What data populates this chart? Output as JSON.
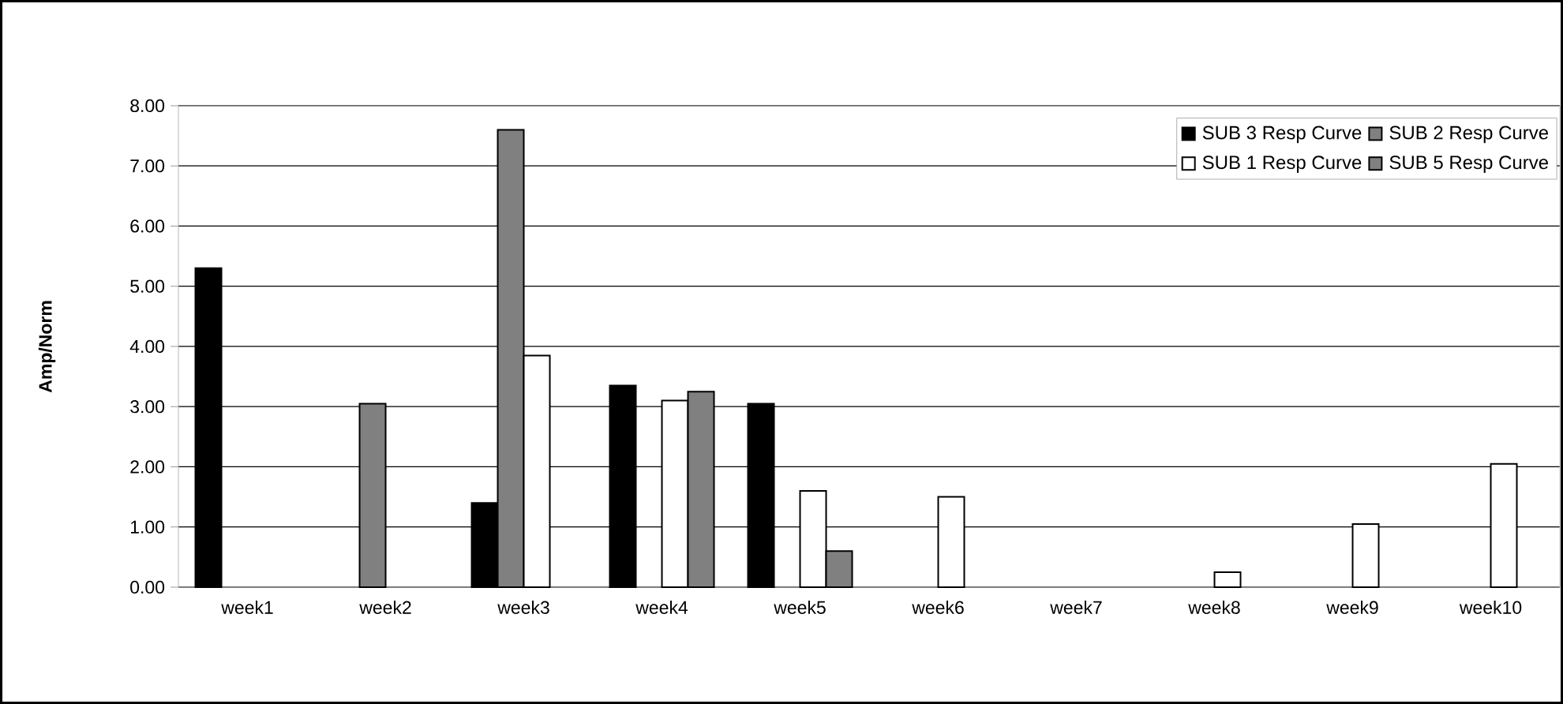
{
  "chart_data": {
    "type": "bar",
    "ylabel": "Amp/Norm",
    "categories": [
      "week1",
      "week2",
      "week3",
      "week4",
      "week5",
      "week6",
      "week7",
      "week8",
      "week9",
      "week10"
    ],
    "series": [
      {
        "name": "SUB 3 Resp Curve",
        "color": "#000000",
        "values": [
          5.3,
          null,
          1.4,
          3.35,
          3.05,
          null,
          null,
          null,
          null,
          null
        ]
      },
      {
        "name": "SUB 2 Resp Curve",
        "color": "#808080",
        "values": [
          null,
          3.05,
          7.6,
          null,
          null,
          null,
          null,
          null,
          null,
          null
        ]
      },
      {
        "name": "SUB 1 Resp Curve",
        "color": "#ffffff",
        "values": [
          null,
          null,
          3.85,
          3.1,
          1.6,
          1.5,
          null,
          0.25,
          1.05,
          2.05
        ]
      },
      {
        "name": "SUB 5 Resp Curve",
        "color": "#808080",
        "values": [
          null,
          null,
          null,
          3.25,
          0.6,
          null,
          null,
          null,
          null,
          null
        ]
      }
    ],
    "ylim": [
      0,
      8
    ],
    "yticks": [
      {
        "value": 0,
        "label": "0.00"
      },
      {
        "value": 1,
        "label": "1.00"
      },
      {
        "value": 2,
        "label": "2.00"
      },
      {
        "value": 3,
        "label": "3.00"
      },
      {
        "value": 4,
        "label": "4.00"
      },
      {
        "value": 5,
        "label": "5.00"
      },
      {
        "value": 6,
        "label": "6.00"
      },
      {
        "value": 7,
        "label": "7.00"
      },
      {
        "value": 8,
        "label": "8.00"
      }
    ],
    "grid": "y",
    "legend": "top right"
  }
}
